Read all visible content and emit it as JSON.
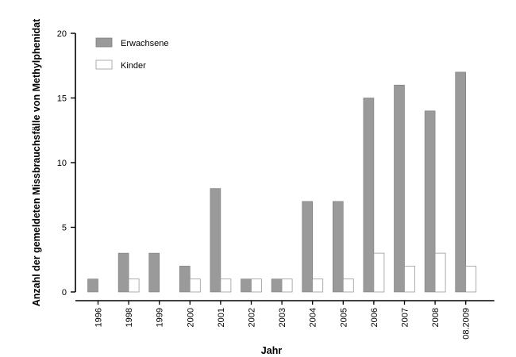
{
  "chart_data": {
    "type": "bar",
    "xlabel": "Jahr",
    "ylabel": "Anzahl der gemeldeten Missbrauchsfälle von Methylphenidat",
    "categories": [
      "1996",
      "1998",
      "1999",
      "2000",
      "2001",
      "2002",
      "2003",
      "2004",
      "2005",
      "2006",
      "2007",
      "2008",
      "08.2009"
    ],
    "series": [
      {
        "name": "Erwachsene",
        "color": "#9a9a9a",
        "values": [
          1,
          3,
          3,
          2,
          8,
          1,
          1,
          7,
          7,
          15,
          16,
          14,
          17
        ]
      },
      {
        "name": "Kinder",
        "color": "#ffffff",
        "values": [
          0,
          1,
          0,
          1,
          1,
          1,
          1,
          1,
          1,
          3,
          2,
          3,
          2
        ]
      }
    ],
    "ylim": [
      0,
      20
    ],
    "yticks": [
      0,
      5,
      10,
      15,
      20
    ],
    "grid": false,
    "legend": "top-left"
  }
}
